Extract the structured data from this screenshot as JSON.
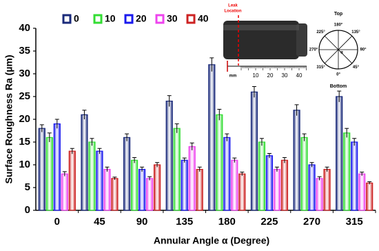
{
  "chart_data": {
    "type": "bar",
    "x_label": "Annular Angle α (Degree)",
    "y_label": "Surface Roughness Ra (µm)",
    "categories": [
      "0",
      "45",
      "90",
      "135",
      "180",
      "225",
      "270",
      "315"
    ],
    "series": [
      {
        "name": "0",
        "color": "#1a2a7a",
        "values": [
          18,
          21,
          16,
          24,
          32,
          26,
          22,
          25
        ],
        "errors": [
          0.8,
          1,
          0.8,
          1.2,
          1.5,
          1.2,
          1.2,
          1.2
        ]
      },
      {
        "name": "10",
        "color": "#33dd33",
        "values": [
          16,
          15,
          11,
          18,
          21,
          15,
          16,
          17
        ],
        "errors": [
          1,
          0.8,
          0.6,
          1,
          1.2,
          0.8,
          0.8,
          1
        ]
      },
      {
        "name": "20",
        "color": "#1a1aee",
        "values": [
          19,
          13,
          9,
          11,
          16,
          12,
          10,
          15
        ],
        "errors": [
          1,
          0.6,
          0.5,
          0.5,
          0.8,
          0.5,
          0.5,
          0.8
        ]
      },
      {
        "name": "30",
        "color": "#ee44ee",
        "values": [
          8,
          9,
          7,
          14,
          11,
          9,
          7,
          8
        ],
        "errors": [
          0.5,
          0.5,
          0.4,
          0.8,
          0.5,
          0.5,
          0.4,
          0.4
        ]
      },
      {
        "name": "40",
        "color": "#cc2222",
        "values": [
          13,
          7,
          10,
          9,
          8,
          11,
          9,
          6
        ],
        "errors": [
          0.6,
          0.3,
          0.5,
          0.5,
          0.4,
          0.6,
          0.5,
          0.3
        ]
      }
    ],
    "ylim": [
      0,
      40
    ],
    "yticks": [
      0,
      5,
      10,
      15,
      20,
      25,
      30,
      35,
      40
    ],
    "inset": {
      "leak_label": [
        "Leak",
        "Location"
      ],
      "ruler_unit": "mm",
      "ruler_labels": [
        10,
        20,
        30,
        40
      ],
      "dial_top": "Top",
      "dial_bottom": "Bottom",
      "dial_angles": [
        "180°",
        "135°",
        "90°",
        "45°",
        "0°",
        "315°",
        "270°",
        "225°"
      ],
      "dial_symbol": "α"
    }
  }
}
